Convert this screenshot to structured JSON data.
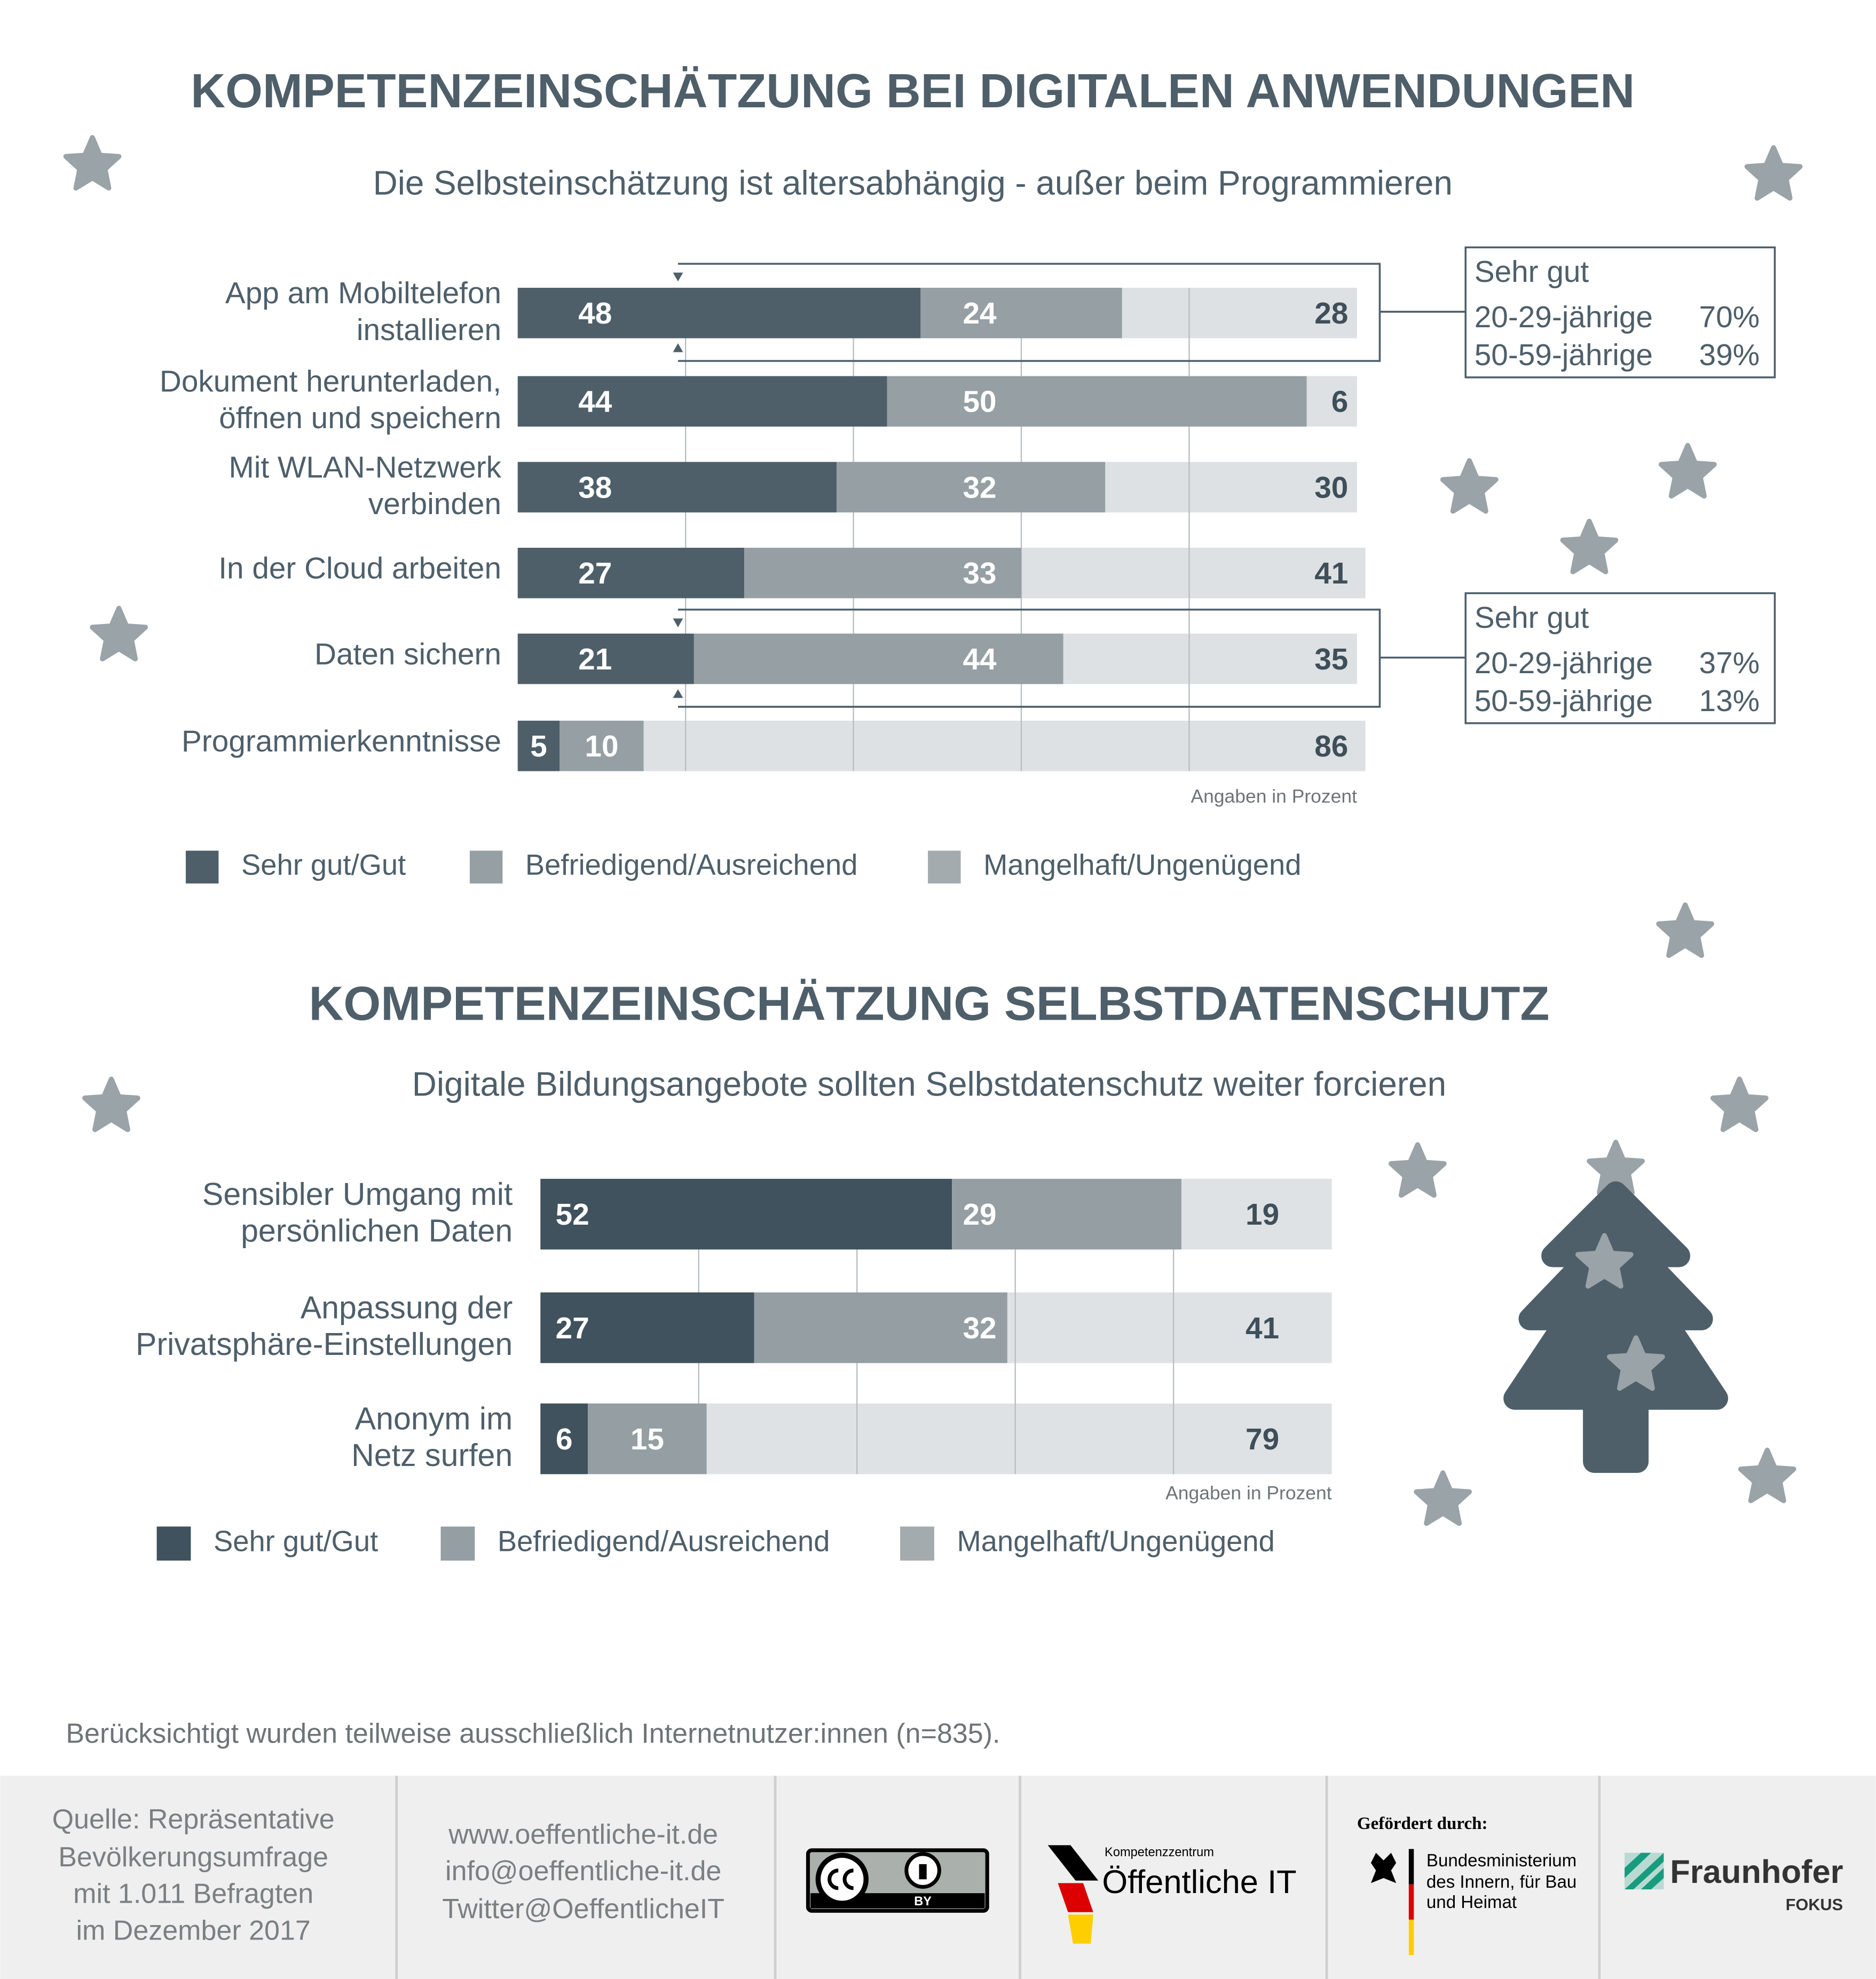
{
  "chart_data": [
    {
      "type": "stacked_bar_h",
      "title": "KOMPETENZEINSCHÄTZUNG BEI DIGITALEN ANWENDUNGEN",
      "subtitle": "Die Selbsteinschätzung ist altersabhängig - außer beim Programmieren",
      "categories": [
        [
          "App am Mobiltelefon",
          "installieren"
        ],
        [
          "Dokument herunterladen,",
          "öffnen und speichern"
        ],
        [
          "Mit WLAN-Netzwerk",
          "verbinden"
        ],
        [
          "In der Cloud arbeiten"
        ],
        [
          "Daten sichern"
        ],
        [
          "Programmierkenntnisse"
        ]
      ],
      "series": [
        {
          "name": "Sehr gut/Gut",
          "color": "#4e5f6a",
          "values": [
            48,
            44,
            38,
            27,
            21,
            5
          ]
        },
        {
          "name": "Befriedigend/Ausreichend",
          "color": "#959fa4",
          "values": [
            24,
            50,
            32,
            33,
            44,
            10
          ]
        },
        {
          "name": "Mangelhaft/Ungenügend",
          "color": "#dde1e3",
          "values": [
            28,
            6,
            30,
            41,
            35,
            86
          ]
        }
      ],
      "xlim": [
        0,
        100
      ],
      "xticks": [
        20,
        40,
        60,
        80
      ],
      "grid": true,
      "note": "Angaben in Prozent",
      "annotations": [
        {
          "title": "Sehr gut",
          "rows": [
            {
              "label": "20-29-jährige",
              "value_label": "70%"
            },
            {
              "label": "50-59-jährige",
              "value_label": "39%"
            }
          ]
        },
        {
          "title": "Sehr gut",
          "rows": [
            {
              "label": "20-29-jährige",
              "value_label": "37%"
            },
            {
              "label": "50-59-jährige",
              "value_label": "13%"
            }
          ]
        }
      ]
    },
    {
      "type": "stacked_bar_h",
      "title": "KOMPETENZEINSCHÄTZUNG SELBSTDATENSCHUTZ",
      "subtitle": "Digitale Bildungsangebote sollten Selbstdatenschutz weiter forcieren",
      "categories": [
        [
          "Sensibler Umgang mit",
          "persönlichen Daten"
        ],
        [
          "Anpassung der",
          "Privatsphäre-Einstellungen"
        ],
        [
          "Anonym im",
          "Netz surfen"
        ]
      ],
      "series": [
        {
          "name": "Sehr gut/Gut",
          "color": "#3f525d",
          "values": [
            52,
            27,
            6
          ]
        },
        {
          "name": "Befriedigend/Ausreichend",
          "color": "#949ea3",
          "values": [
            29,
            32,
            15
          ]
        },
        {
          "name": "Mangelhaft/Ungenügend",
          "color": "#dfe2e4",
          "values": [
            19,
            41,
            79
          ]
        }
      ],
      "xlim": [
        0,
        100
      ],
      "xticks": [
        20,
        40,
        60,
        80
      ],
      "grid": true,
      "note": "Angaben in Prozent"
    }
  ],
  "footer": {
    "note": "Berücksichtigt wurden teilweise ausschließlich Internetnutzer:innen (n=835).",
    "source": [
      "Quelle: Repräsentative",
      "Bevölkerungsumfrage",
      "mit 1.011 Befragten",
      "im Dezember 2017"
    ],
    "contact": [
      "www.oeffentliche-it.de",
      "info@oeffentliche-it.de",
      "Twitter@OeffentlicheIT"
    ],
    "license": "BY",
    "partner": {
      "small": "Kompetenzzentrum",
      "name": "Öffentliche IT"
    },
    "funding": {
      "label": "Gefördert durch:",
      "lines": [
        "Bundesministerium",
        "des Innern, für Bau",
        "und Heimat"
      ]
    },
    "institute": {
      "name": "Fraunhofer",
      "unit": "FOKUS"
    }
  }
}
